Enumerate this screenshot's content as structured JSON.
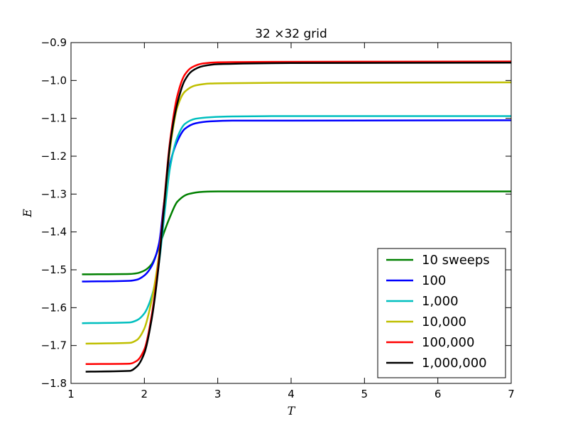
{
  "chart_data": {
    "type": "line",
    "title": "32 ×32 grid",
    "xlabel": "T",
    "ylabel": "E",
    "xlim": [
      1,
      7
    ],
    "ylim": [
      -1.8,
      -0.9
    ],
    "xticks": [
      1,
      2,
      3,
      4,
      5,
      6,
      7
    ],
    "xtick_labels": [
      "1",
      "2",
      "3",
      "4",
      "5",
      "6",
      "7"
    ],
    "yticks": [
      -1.8,
      -1.7,
      -1.6,
      -1.5,
      -1.4,
      -1.3,
      -1.2,
      -1.1,
      -1.0,
      -0.9
    ],
    "ytick_labels": [
      "−1.8",
      "−1.7",
      "−1.6",
      "−1.5",
      "−1.4",
      "−1.3",
      "−1.2",
      "−1.1",
      "−1.0",
      "−0.9"
    ],
    "grid": false,
    "legend_position": "lower-right",
    "series": [
      {
        "name": "10 sweeps",
        "color": "#008000",
        "x": [
          1.15,
          1.8,
          1.9,
          2.0,
          2.1,
          2.2,
          2.27,
          2.35,
          2.45,
          2.6,
          2.8,
          3.0,
          4.0,
          7.0
        ],
        "y": [
          -1.512,
          -1.511,
          -1.509,
          -1.502,
          -1.485,
          -1.44,
          -1.4,
          -1.36,
          -1.32,
          -1.3,
          -1.294,
          -1.293,
          -1.293,
          -1.293
        ]
      },
      {
        "name": "100",
        "color": "#0000ff",
        "x": [
          1.15,
          1.8,
          1.9,
          2.0,
          2.1,
          2.2,
          2.27,
          2.35,
          2.45,
          2.55,
          2.7,
          2.9,
          3.2,
          4.0,
          7.0
        ],
        "y": [
          -1.531,
          -1.529,
          -1.526,
          -1.515,
          -1.49,
          -1.43,
          -1.32,
          -1.22,
          -1.16,
          -1.128,
          -1.113,
          -1.108,
          -1.106,
          -1.106,
          -1.105
        ]
      },
      {
        "name": "1,000",
        "color": "#00bfbf",
        "x": [
          1.15,
          1.8,
          1.9,
          2.0,
          2.1,
          2.2,
          2.27,
          2.35,
          2.45,
          2.55,
          2.7,
          2.9,
          3.2,
          4.0,
          7.0
        ],
        "y": [
          -1.641,
          -1.639,
          -1.633,
          -1.615,
          -1.57,
          -1.48,
          -1.36,
          -1.23,
          -1.15,
          -1.115,
          -1.101,
          -1.097,
          -1.095,
          -1.094,
          -1.094
        ]
      },
      {
        "name": "10,000",
        "color": "#bfbf00",
        "x": [
          1.2,
          1.8,
          1.9,
          2.0,
          2.1,
          2.2,
          2.27,
          2.35,
          2.45,
          2.55,
          2.7,
          2.9,
          3.2,
          4.0,
          7.0
        ],
        "y": [
          -1.695,
          -1.693,
          -1.685,
          -1.655,
          -1.58,
          -1.46,
          -1.33,
          -1.18,
          -1.07,
          -1.03,
          -1.013,
          -1.008,
          -1.007,
          -1.006,
          -1.005
        ]
      },
      {
        "name": "100,000",
        "color": "#ff0000",
        "x": [
          1.2,
          1.8,
          1.9,
          2.0,
          2.1,
          2.2,
          2.27,
          2.35,
          2.45,
          2.55,
          2.65,
          2.8,
          3.0,
          3.5,
          7.0
        ],
        "y": [
          -1.749,
          -1.748,
          -1.74,
          -1.71,
          -1.62,
          -1.47,
          -1.32,
          -1.16,
          -1.04,
          -0.985,
          -0.965,
          -0.955,
          -0.952,
          -0.951,
          -0.95
        ]
      },
      {
        "name": "1,000,000",
        "color": "#000000",
        "x": [
          1.2,
          1.8,
          1.9,
          2.0,
          2.1,
          2.2,
          2.27,
          2.35,
          2.45,
          2.55,
          2.65,
          2.8,
          3.0,
          4.0,
          7.0
        ],
        "y": [
          -1.769,
          -1.767,
          -1.755,
          -1.72,
          -1.63,
          -1.48,
          -1.33,
          -1.17,
          -1.06,
          -1.0,
          -0.975,
          -0.962,
          -0.957,
          -0.954,
          -0.953
        ]
      }
    ]
  }
}
